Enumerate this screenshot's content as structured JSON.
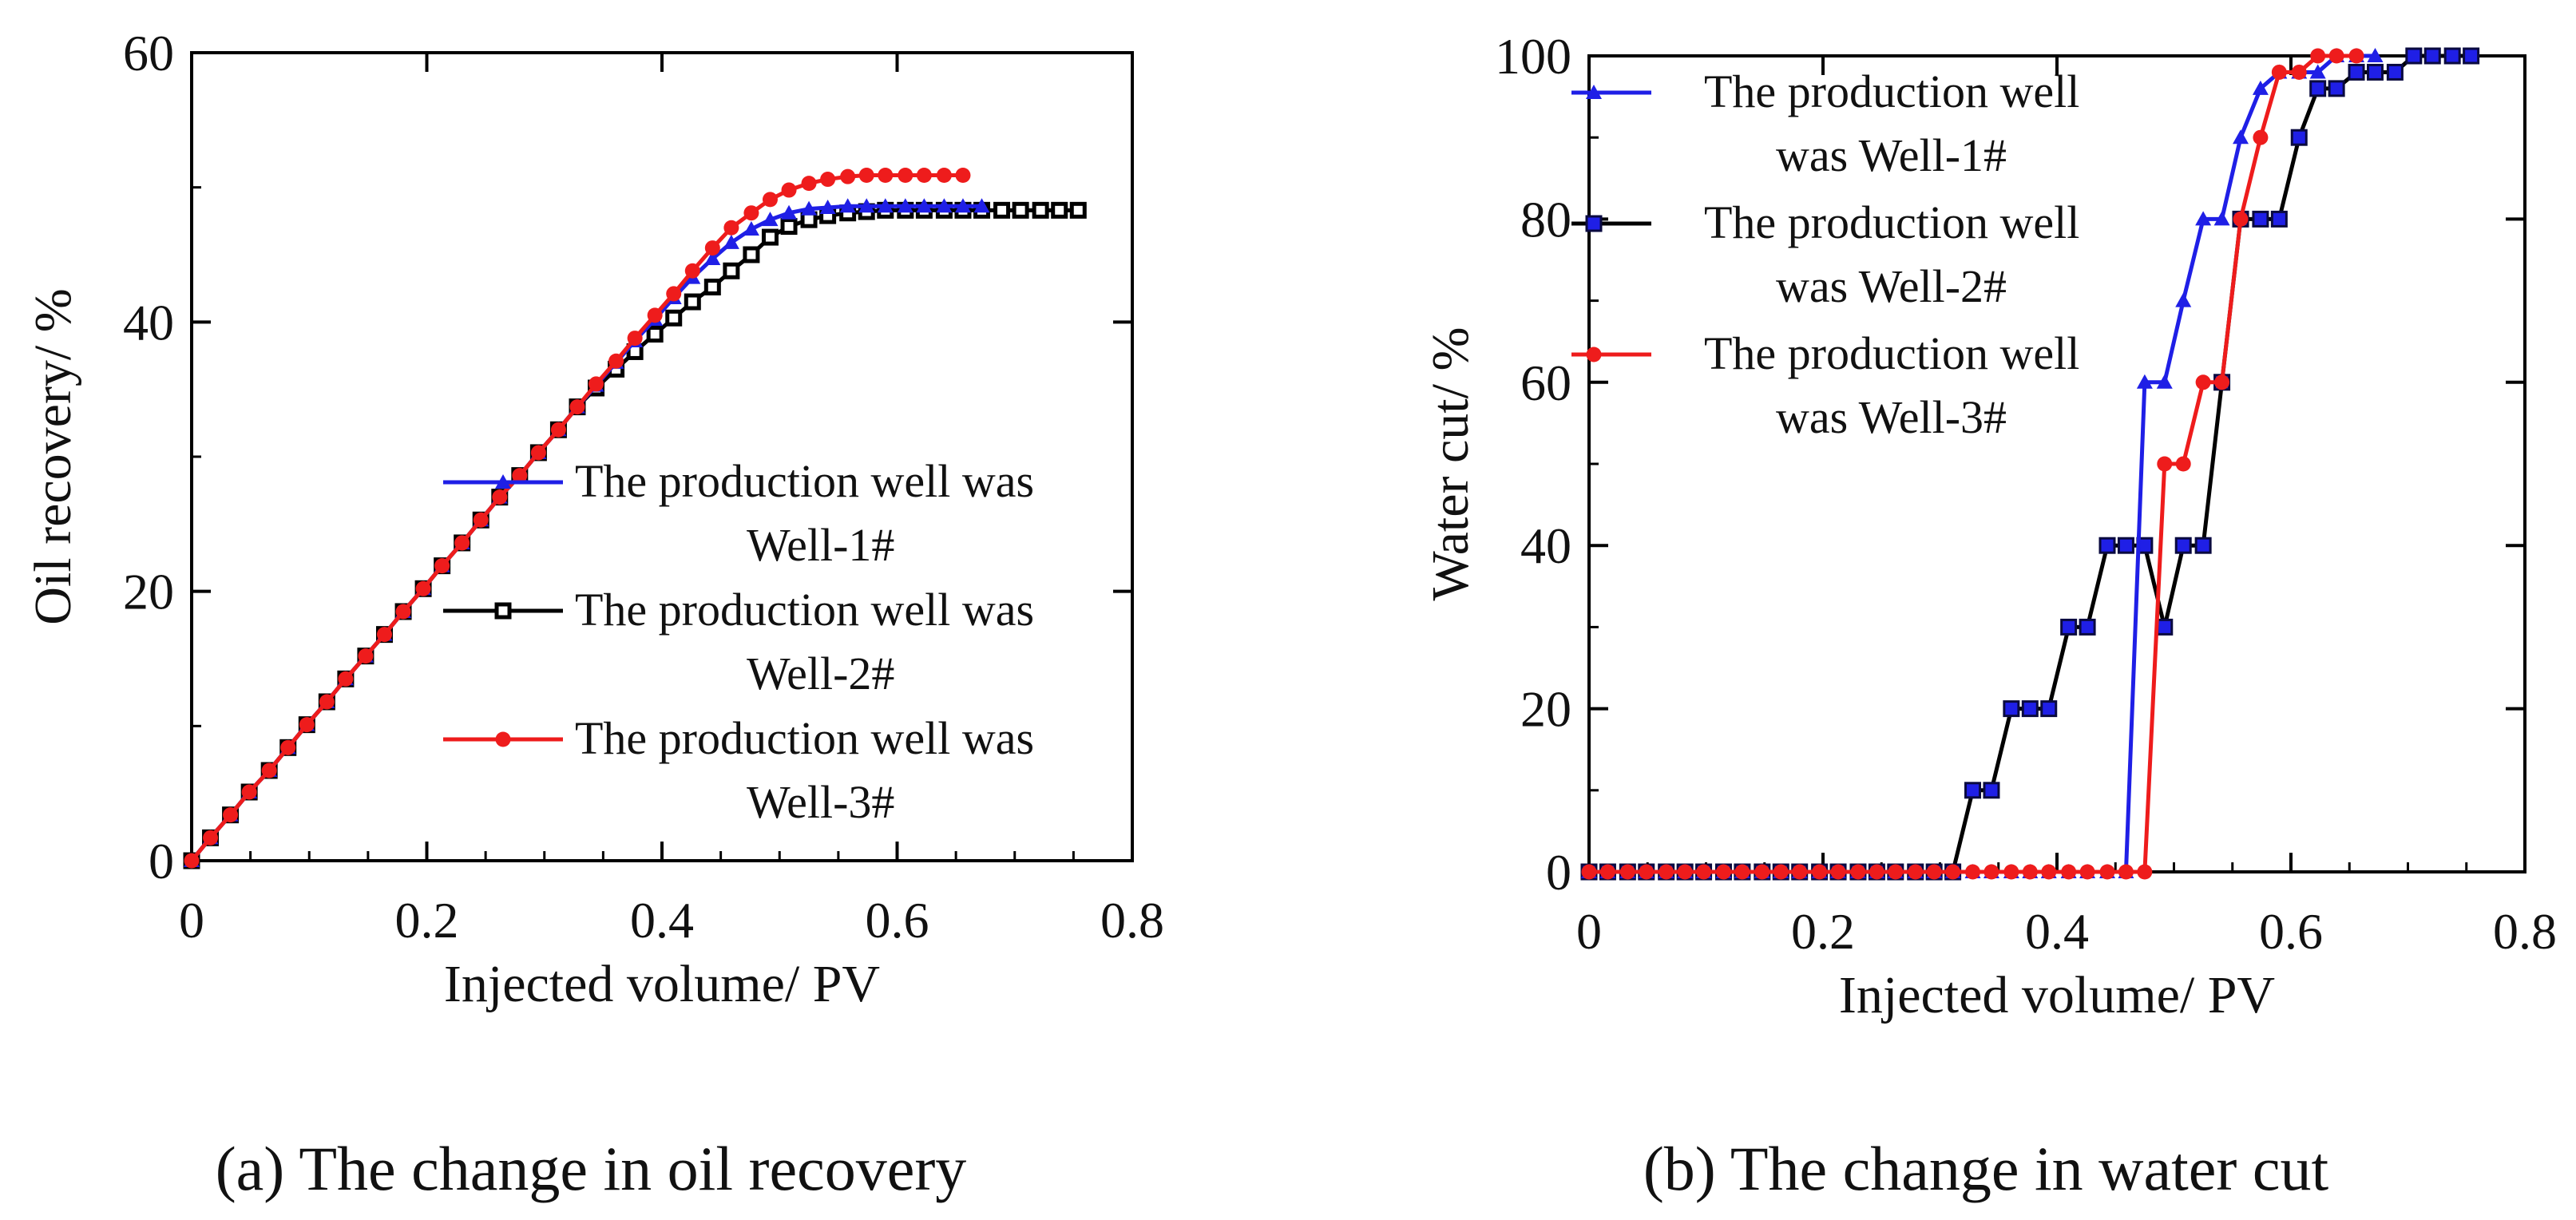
{
  "chart_data": [
    {
      "id": "a",
      "type": "line",
      "caption": "(a) The change in oil recovery",
      "xlabel": "Injected volume/ PV",
      "ylabel": "Oil recovery/ %",
      "xlim": [
        0,
        0.8
      ],
      "ylim": [
        0,
        60
      ],
      "xticks": [
        0,
        0.2,
        0.4,
        0.6,
        0.8
      ],
      "xtick_labels": [
        "0",
        "0.2",
        "0.4",
        "0.6",
        "0.8"
      ],
      "yticks": [
        0,
        20,
        40,
        60
      ],
      "ytick_labels": [
        "0",
        "20",
        "40",
        "60"
      ],
      "grid": false,
      "legend_position": "center-right",
      "series": [
        {
          "name": "Well-2",
          "legend_lines": [
            "The production well was",
            "Well-2#"
          ],
          "color": "#000000",
          "marker": "square",
          "x": [
            0,
            0.016,
            0.033,
            0.049,
            0.066,
            0.082,
            0.098,
            0.115,
            0.131,
            0.148,
            0.164,
            0.18,
            0.197,
            0.213,
            0.23,
            0.246,
            0.262,
            0.279,
            0.295,
            0.312,
            0.328,
            0.344,
            0.361,
            0.377,
            0.394,
            0.41,
            0.426,
            0.443,
            0.459,
            0.476,
            0.492,
            0.508,
            0.525,
            0.541,
            0.558,
            0.574,
            0.59,
            0.607,
            0.623,
            0.64,
            0.656,
            0.672,
            0.689,
            0.705,
            0.722,
            0.738,
            0.754
          ],
          "y": [
            0,
            1.7,
            3.4,
            5.1,
            6.7,
            8.4,
            10.1,
            11.8,
            13.5,
            15.2,
            16.8,
            18.5,
            20.2,
            21.9,
            23.6,
            25.3,
            27,
            28.6,
            30.3,
            32,
            33.7,
            35.1,
            36.5,
            37.8,
            39.1,
            40.3,
            41.5,
            42.6,
            43.8,
            45,
            46.3,
            47.1,
            47.6,
            47.9,
            48.1,
            48.2,
            48.3,
            48.3,
            48.3,
            48.3,
            48.3,
            48.3,
            48.3,
            48.3,
            48.3,
            48.3,
            48.3
          ]
        },
        {
          "name": "Well-1",
          "legend_lines": [
            "The production well was",
            "Well-1#"
          ],
          "color": "#1f1fe6",
          "marker": "triangle",
          "x": [
            0,
            0.016,
            0.033,
            0.049,
            0.066,
            0.082,
            0.098,
            0.115,
            0.131,
            0.148,
            0.164,
            0.18,
            0.197,
            0.213,
            0.23,
            0.246,
            0.262,
            0.279,
            0.295,
            0.312,
            0.328,
            0.344,
            0.361,
            0.377,
            0.394,
            0.41,
            0.426,
            0.443,
            0.459,
            0.476,
            0.492,
            0.508,
            0.525,
            0.541,
            0.558,
            0.574,
            0.59,
            0.607,
            0.623,
            0.64,
            0.656,
            0.672
          ],
          "y": [
            0,
            1.7,
            3.4,
            5.1,
            6.7,
            8.4,
            10.1,
            11.8,
            13.5,
            15.2,
            16.8,
            18.5,
            20.2,
            21.9,
            23.6,
            25.3,
            27,
            28.6,
            30.3,
            32,
            33.7,
            35.3,
            37,
            38.6,
            40.2,
            41.8,
            43.3,
            44.7,
            45.9,
            46.9,
            47.6,
            48.1,
            48.4,
            48.5,
            48.6,
            48.6,
            48.6,
            48.6,
            48.6,
            48.6,
            48.6,
            48.6
          ]
        },
        {
          "name": "Well-3",
          "legend_lines": [
            "The production well was",
            "Well-3#"
          ],
          "color": "#ee1c1c",
          "marker": "circle",
          "x": [
            0,
            0.016,
            0.033,
            0.049,
            0.066,
            0.082,
            0.098,
            0.115,
            0.131,
            0.148,
            0.164,
            0.18,
            0.197,
            0.213,
            0.23,
            0.246,
            0.262,
            0.279,
            0.295,
            0.312,
            0.328,
            0.344,
            0.361,
            0.377,
            0.394,
            0.41,
            0.426,
            0.443,
            0.459,
            0.476,
            0.492,
            0.508,
            0.525,
            0.541,
            0.558,
            0.574,
            0.59,
            0.607,
            0.623,
            0.64,
            0.656
          ],
          "y": [
            0,
            1.7,
            3.4,
            5.1,
            6.7,
            8.4,
            10.1,
            11.8,
            13.5,
            15.2,
            16.8,
            18.5,
            20.2,
            21.9,
            23.6,
            25.3,
            27,
            28.6,
            30.3,
            32,
            33.7,
            35.4,
            37.1,
            38.8,
            40.5,
            42.1,
            43.8,
            45.5,
            47,
            48.1,
            49.1,
            49.8,
            50.3,
            50.6,
            50.8,
            50.9,
            50.9,
            50.9,
            50.9,
            50.9,
            50.9
          ]
        }
      ]
    },
    {
      "id": "b",
      "type": "line",
      "caption": "(b) The change in water cut",
      "xlabel": "Injected volume/ PV",
      "ylabel": "Water cut/ %",
      "xlim": [
        0,
        0.8
      ],
      "ylim": [
        0,
        100
      ],
      "xticks": [
        0,
        0.2,
        0.4,
        0.6,
        0.8
      ],
      "xtick_labels": [
        "0",
        "0.2",
        "0.4",
        "0.6",
        "0.8"
      ],
      "yticks": [
        0,
        20,
        40,
        60,
        80,
        100
      ],
      "ytick_labels": [
        "0",
        "20",
        "40",
        "60",
        "80",
        "100"
      ],
      "grid": false,
      "legend_position": "top-left",
      "series": [
        {
          "name": "Well-2",
          "legend_lines": [
            "The production well",
            "was Well-2#"
          ],
          "color": "#000000",
          "marker": "square-blue",
          "x": [
            0,
            0.016,
            0.033,
            0.049,
            0.066,
            0.082,
            0.098,
            0.115,
            0.131,
            0.148,
            0.164,
            0.18,
            0.197,
            0.213,
            0.23,
            0.246,
            0.262,
            0.279,
            0.295,
            0.311,
            0.328,
            0.344,
            0.361,
            0.377,
            0.393,
            0.41,
            0.426,
            0.443,
            0.459,
            0.475,
            0.492,
            0.508,
            0.525,
            0.541,
            0.557,
            0.574,
            0.59,
            0.607,
            0.623,
            0.639,
            0.656,
            0.672,
            0.689,
            0.705,
            0.721,
            0.738,
            0.754
          ],
          "y": [
            0,
            0,
            0,
            0,
            0,
            0,
            0,
            0,
            0,
            0,
            0,
            0,
            0,
            0,
            0,
            0,
            0,
            0,
            0,
            0,
            10,
            10,
            20,
            20,
            20,
            30,
            30,
            40,
            40,
            40,
            30,
            40,
            40,
            60,
            80,
            80,
            80,
            90,
            96,
            96,
            98,
            98,
            98,
            100,
            100,
            100,
            100
          ]
        },
        {
          "name": "Well-1",
          "legend_lines": [
            "The production well",
            "was Well-1#"
          ],
          "color": "#1f1fe6",
          "marker": "triangle",
          "x": [
            0,
            0.016,
            0.033,
            0.049,
            0.066,
            0.082,
            0.098,
            0.115,
            0.131,
            0.148,
            0.164,
            0.18,
            0.197,
            0.213,
            0.23,
            0.246,
            0.262,
            0.279,
            0.295,
            0.311,
            0.328,
            0.344,
            0.361,
            0.377,
            0.393,
            0.41,
            0.426,
            0.443,
            0.459,
            0.475,
            0.492,
            0.508,
            0.525,
            0.541,
            0.557,
            0.574,
            0.59,
            0.607,
            0.623,
            0.639,
            0.656,
            0.672
          ],
          "y": [
            0,
            0,
            0,
            0,
            0,
            0,
            0,
            0,
            0,
            0,
            0,
            0,
            0,
            0,
            0,
            0,
            0,
            0,
            0,
            0,
            0,
            0,
            0,
            0,
            0,
            0,
            0,
            0,
            0,
            60,
            60,
            70,
            80,
            80,
            90,
            96,
            98,
            98,
            98,
            100,
            100,
            100
          ]
        },
        {
          "name": "Well-3",
          "legend_lines": [
            "The production well",
            "was Well-3#"
          ],
          "color": "#ee1c1c",
          "marker": "circle",
          "x": [
            0,
            0.016,
            0.033,
            0.049,
            0.066,
            0.082,
            0.098,
            0.115,
            0.131,
            0.148,
            0.164,
            0.18,
            0.197,
            0.213,
            0.23,
            0.246,
            0.262,
            0.279,
            0.295,
            0.311,
            0.328,
            0.344,
            0.361,
            0.377,
            0.393,
            0.41,
            0.426,
            0.443,
            0.459,
            0.475,
            0.492,
            0.508,
            0.525,
            0.541,
            0.557,
            0.574,
            0.59,
            0.607,
            0.623,
            0.639,
            0.656
          ],
          "y": [
            0,
            0,
            0,
            0,
            0,
            0,
            0,
            0,
            0,
            0,
            0,
            0,
            0,
            0,
            0,
            0,
            0,
            0,
            0,
            0,
            0,
            0,
            0,
            0,
            0,
            0,
            0,
            0,
            0,
            0,
            50,
            50,
            60,
            60,
            80,
            90,
            98,
            98,
            100,
            100,
            100
          ]
        }
      ]
    }
  ]
}
